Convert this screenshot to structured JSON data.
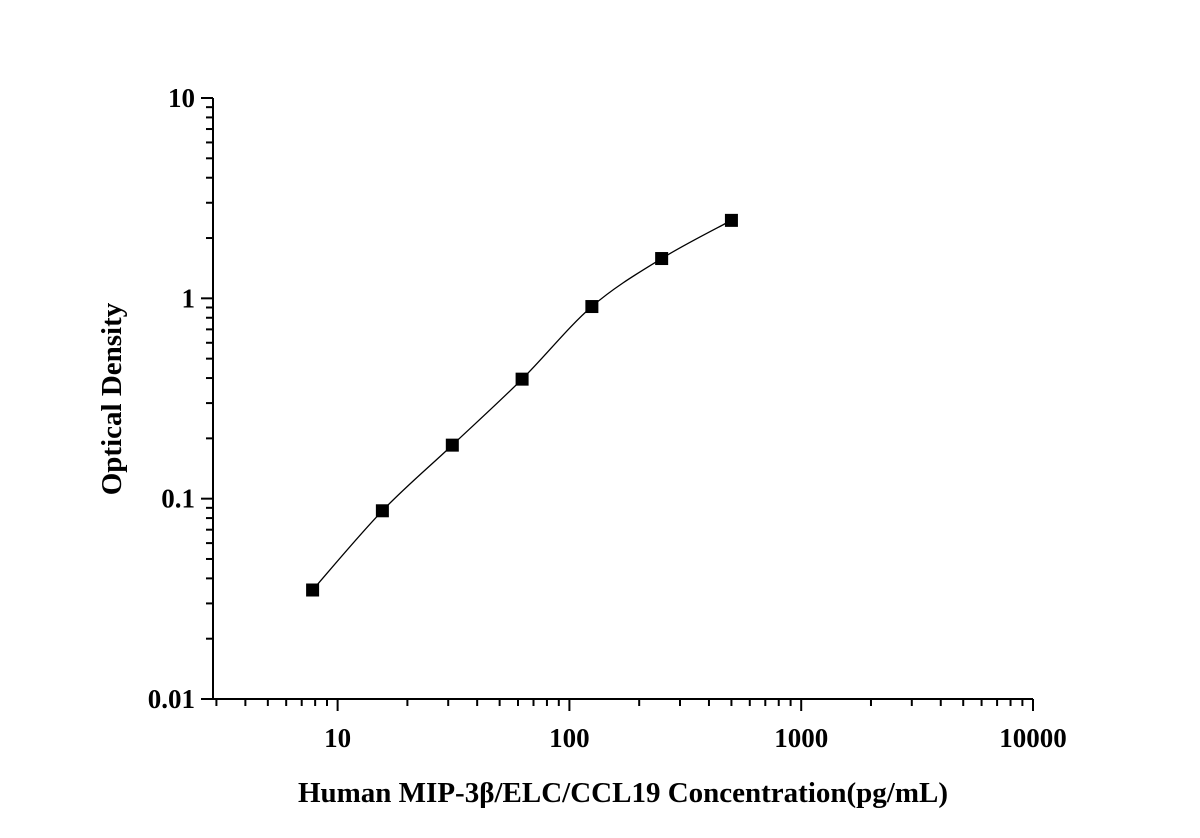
{
  "chart_data": {
    "type": "scatter",
    "title": "",
    "xlabel": "Human MIP-3β/ELC/CCL19 Concentration(pg/mL)",
    "ylabel": "Optical Density",
    "x_scale": "log",
    "y_scale": "log",
    "xlim": [
      2.9,
      10000
    ],
    "ylim": [
      0.01,
      10
    ],
    "x_ticks": [
      10,
      100,
      1000,
      10000
    ],
    "x_tick_labels": [
      "10",
      "100",
      "1000",
      "10000"
    ],
    "y_ticks": [
      0.01,
      0.1,
      1,
      10
    ],
    "y_tick_labels": [
      "0.01",
      "0.1",
      "1",
      "10"
    ],
    "grid": false,
    "legend": "none",
    "marker": "square",
    "series": [
      {
        "x": [
          7.8,
          15.6,
          31.25,
          62.5,
          125,
          250,
          500
        ],
        "y": [
          0.035,
          0.087,
          0.185,
          0.395,
          0.91,
          1.58,
          2.45
        ],
        "color": "#000000",
        "fit_curve": true
      }
    ]
  }
}
